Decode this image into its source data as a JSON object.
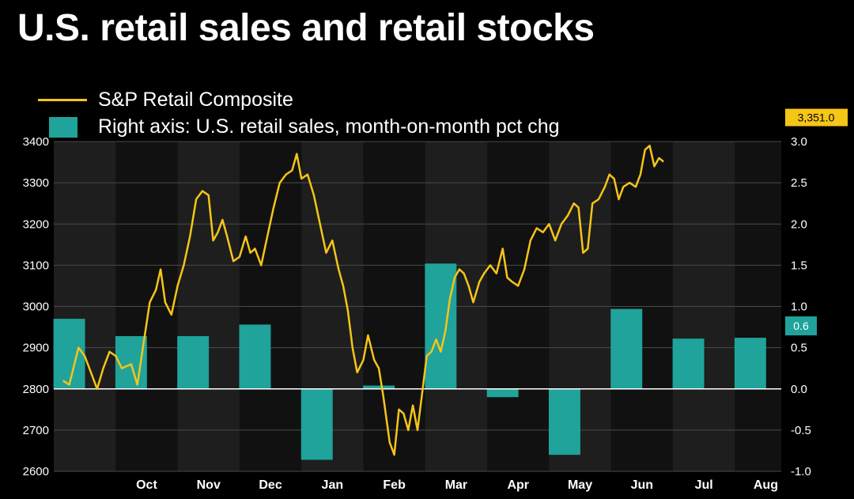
{
  "title": "U.S. retail sales and retail stocks",
  "colors": {
    "background": "#000000",
    "plot_background": "#111111",
    "band": "#1e1e1e",
    "line": "#f5c518",
    "bars": "#1fa39a",
    "grid": "#4a4a4a",
    "zero_line": "#ffffff"
  },
  "legend": {
    "line_label": "S&P Retail Composite",
    "bar_label": "Right axis: U.S. retail sales, month-on-month pct chg"
  },
  "badges": {
    "line_value": "3,351.0",
    "bar_value": "0.6"
  },
  "chart_data": {
    "type": "line",
    "legend_position": "top-left",
    "grid": true,
    "x_tick_labels": [
      "Oct",
      "Nov",
      "Dec",
      "Jan",
      "Feb",
      "Mar",
      "Apr",
      "May",
      "Jun",
      "Jul",
      "Aug"
    ],
    "left_axis": {
      "ylim": [
        2600,
        3400
      ],
      "ticks": [
        2600,
        2700,
        2800,
        2900,
        3000,
        3100,
        3200,
        3300,
        3400
      ]
    },
    "right_axis": {
      "ylim": [
        -1.0,
        3.0
      ],
      "ticks": [
        "-1.0",
        "-0.5",
        "0.0",
        "0.5",
        "1.0",
        "1.5",
        "2.0",
        "2.5",
        "3.0"
      ]
    },
    "line_series": {
      "name": "S&P Retail Composite",
      "axis": "left",
      "points": [
        [
          0.3,
          2820
        ],
        [
          0.5,
          2810
        ],
        [
          0.8,
          2900
        ],
        [
          1.0,
          2880
        ],
        [
          1.2,
          2840
        ],
        [
          1.4,
          2800
        ],
        [
          1.6,
          2850
        ],
        [
          1.8,
          2890
        ],
        [
          2.0,
          2880
        ],
        [
          2.2,
          2850
        ],
        [
          2.5,
          2860
        ],
        [
          2.7,
          2810
        ],
        [
          2.9,
          2910
        ],
        [
          3.1,
          3010
        ],
        [
          3.3,
          3040
        ],
        [
          3.45,
          3090
        ],
        [
          3.6,
          3010
        ],
        [
          3.8,
          2980
        ],
        [
          4.0,
          3050
        ],
        [
          4.2,
          3100
        ],
        [
          4.4,
          3170
        ],
        [
          4.6,
          3260
        ],
        [
          4.8,
          3280
        ],
        [
          5.0,
          3270
        ],
        [
          5.15,
          3160
        ],
        [
          5.3,
          3180
        ],
        [
          5.45,
          3210
        ],
        [
          5.6,
          3170
        ],
        [
          5.8,
          3110
        ],
        [
          6.0,
          3120
        ],
        [
          6.2,
          3170
        ],
        [
          6.35,
          3130
        ],
        [
          6.5,
          3140
        ],
        [
          6.7,
          3100
        ],
        [
          6.9,
          3170
        ],
        [
          7.1,
          3240
        ],
        [
          7.3,
          3300
        ],
        [
          7.5,
          3320
        ],
        [
          7.7,
          3330
        ],
        [
          7.85,
          3370
        ],
        [
          8.0,
          3310
        ],
        [
          8.2,
          3320
        ],
        [
          8.4,
          3270
        ],
        [
          8.6,
          3200
        ],
        [
          8.8,
          3130
        ],
        [
          9.0,
          3160
        ],
        [
          9.2,
          3090
        ],
        [
          9.35,
          3050
        ],
        [
          9.5,
          2990
        ],
        [
          9.65,
          2900
        ],
        [
          9.8,
          2840
        ],
        [
          10.0,
          2870
        ],
        [
          10.15,
          2930
        ],
        [
          10.35,
          2870
        ],
        [
          10.5,
          2850
        ],
        [
          10.65,
          2780
        ],
        [
          10.85,
          2670
        ],
        [
          11.0,
          2640
        ],
        [
          11.15,
          2750
        ],
        [
          11.3,
          2740
        ],
        [
          11.45,
          2700
        ],
        [
          11.6,
          2760
        ],
        [
          11.75,
          2700
        ],
        [
          11.9,
          2790
        ],
        [
          12.05,
          2880
        ],
        [
          12.2,
          2890
        ],
        [
          12.35,
          2920
        ],
        [
          12.5,
          2890
        ],
        [
          12.65,
          2940
        ],
        [
          12.8,
          3020
        ],
        [
          12.95,
          3070
        ],
        [
          13.1,
          3090
        ],
        [
          13.25,
          3080
        ],
        [
          13.4,
          3050
        ],
        [
          13.55,
          3010
        ],
        [
          13.75,
          3060
        ],
        [
          13.9,
          3080
        ],
        [
          14.1,
          3100
        ],
        [
          14.3,
          3080
        ],
        [
          14.5,
          3140
        ],
        [
          14.65,
          3070
        ],
        [
          14.8,
          3060
        ],
        [
          15.0,
          3050
        ],
        [
          15.2,
          3090
        ],
        [
          15.4,
          3160
        ],
        [
          15.6,
          3190
        ],
        [
          15.8,
          3180
        ],
        [
          16.0,
          3200
        ],
        [
          16.2,
          3160
        ],
        [
          16.4,
          3200
        ],
        [
          16.6,
          3220
        ],
        [
          16.8,
          3250
        ],
        [
          16.95,
          3240
        ],
        [
          17.1,
          3130
        ],
        [
          17.25,
          3140
        ],
        [
          17.4,
          3250
        ],
        [
          17.6,
          3260
        ],
        [
          17.8,
          3290
        ],
        [
          17.95,
          3320
        ],
        [
          18.1,
          3310
        ],
        [
          18.25,
          3260
        ],
        [
          18.4,
          3290
        ],
        [
          18.6,
          3300
        ],
        [
          18.8,
          3290
        ],
        [
          18.95,
          3320
        ],
        [
          19.1,
          3380
        ],
        [
          19.25,
          3390
        ],
        [
          19.4,
          3340
        ],
        [
          19.55,
          3360
        ],
        [
          19.7,
          3351
        ]
      ]
    },
    "bar_series": {
      "name": "Right axis: U.S. retail sales, month-on-month pct chg",
      "axis": "right",
      "bars": [
        {
          "x": 0.5,
          "value": 0.85
        },
        {
          "x": 2.5,
          "value": 0.64
        },
        {
          "x": 4.5,
          "value": 0.64
        },
        {
          "x": 6.5,
          "value": 0.78
        },
        {
          "x": 8.5,
          "value": -0.86
        },
        {
          "x": 10.5,
          "value": 0.04
        },
        {
          "x": 12.5,
          "value": 1.52
        },
        {
          "x": 14.5,
          "value": -0.1
        },
        {
          "x": 16.5,
          "value": -0.8
        },
        {
          "x": 18.5,
          "value": 0.97
        },
        {
          "x": 20.5,
          "value": 0.61
        },
        {
          "x": 22.5,
          "value": 0.62
        }
      ]
    }
  }
}
